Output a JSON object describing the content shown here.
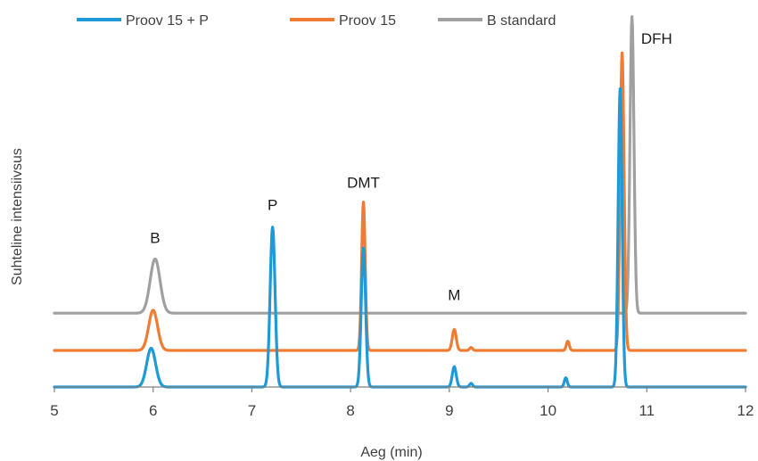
{
  "chart_data": {
    "type": "line",
    "title": "",
    "xlabel": "Aeg (min)",
    "ylabel": "Suhteline intensiivsus",
    "xlim": [
      5,
      12
    ],
    "xticks": [
      5,
      6,
      7,
      8,
      9,
      10,
      11,
      12
    ],
    "tick_labels": [
      "5",
      "6",
      "7",
      "8",
      "9",
      "10",
      "11",
      "12"
    ],
    "grid": false,
    "legend_position": "top-left",
    "series": [
      {
        "name": "Proov 15 + P",
        "color": "#1f9ad6",
        "baseline": 0.0,
        "peaks": [
          {
            "x": 5.98,
            "height": 0.105,
            "width": 0.045
          },
          {
            "x": 7.21,
            "height": 0.433,
            "width": 0.025
          },
          {
            "x": 8.13,
            "height": 0.376,
            "width": 0.022
          },
          {
            "x": 9.05,
            "height": 0.055,
            "width": 0.02
          },
          {
            "x": 9.22,
            "height": 0.01,
            "width": 0.015
          },
          {
            "x": 10.18,
            "height": 0.025,
            "width": 0.015
          },
          {
            "x": 10.73,
            "height": 0.808,
            "width": 0.02
          }
        ]
      },
      {
        "name": "Proov 15",
        "color": "#f07c33",
        "baseline": 0.099,
        "peaks": [
          {
            "x": 6.0,
            "height": 0.109,
            "width": 0.045
          },
          {
            "x": 8.13,
            "height": 0.402,
            "width": 0.018
          },
          {
            "x": 9.05,
            "height": 0.057,
            "width": 0.02
          },
          {
            "x": 9.22,
            "height": 0.008,
            "width": 0.015
          },
          {
            "x": 10.2,
            "height": 0.025,
            "width": 0.015
          },
          {
            "x": 10.75,
            "height": 0.806,
            "width": 0.02
          }
        ]
      },
      {
        "name": "B standard",
        "color": "#a0a0a0",
        "baseline": 0.2,
        "peaks": [
          {
            "x": 6.02,
            "height": 0.147,
            "width": 0.05
          },
          {
            "x": 10.85,
            "height": 0.803,
            "width": 0.02
          }
        ]
      }
    ],
    "annotations": [
      {
        "text": "B",
        "x": 6.02,
        "y": 0.39
      },
      {
        "text": "P",
        "x": 7.21,
        "y": 0.48
      },
      {
        "text": "DMT",
        "x": 8.13,
        "y": 0.54
      },
      {
        "text": "M",
        "x": 9.05,
        "y": 0.236
      },
      {
        "text": "DFH",
        "x": 11.1,
        "y": 0.93
      }
    ]
  }
}
